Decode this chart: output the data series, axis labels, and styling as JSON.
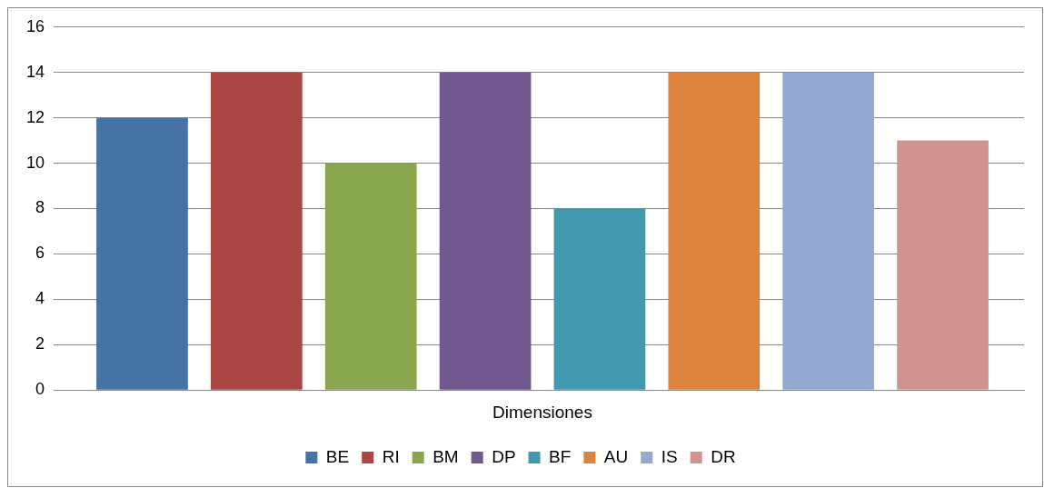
{
  "chart_data": {
    "type": "bar",
    "categories": [
      "Dimensiones"
    ],
    "series": [
      {
        "name": "BE",
        "color": "#4572a7",
        "values": [
          12
        ]
      },
      {
        "name": "RI",
        "color": "#aa4643",
        "values": [
          14
        ]
      },
      {
        "name": "BM",
        "color": "#89a54e",
        "values": [
          10
        ]
      },
      {
        "name": "DP",
        "color": "#71588f",
        "values": [
          14
        ]
      },
      {
        "name": "BF",
        "color": "#4198af",
        "values": [
          8
        ]
      },
      {
        "name": "AU",
        "color": "#db843d",
        "values": [
          14
        ]
      },
      {
        "name": "IS",
        "color": "#93a9cf",
        "values": [
          14
        ]
      },
      {
        "name": "DR",
        "color": "#d19392",
        "values": [
          11
        ]
      }
    ],
    "ylim": [
      0,
      16
    ],
    "yticks": [
      0,
      2,
      4,
      6,
      8,
      10,
      12,
      14,
      16
    ],
    "grid": "y",
    "legend": "bottom"
  }
}
